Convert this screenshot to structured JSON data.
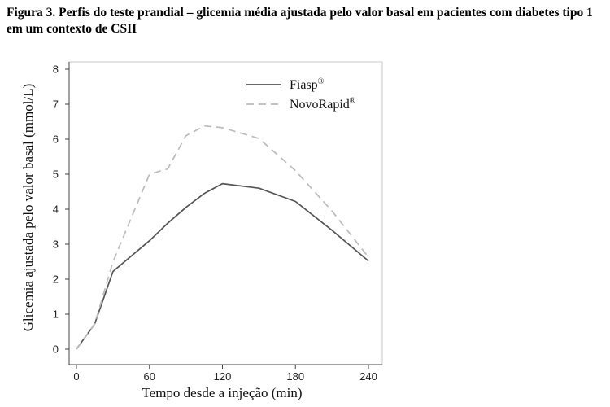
{
  "chart_data": {
    "type": "line",
    "title": "Figura 3. Perfis do teste prandial – glicemia média ajustada pelo valor basal em pacientes com diabetes tipo 1 em um contexto de CSII",
    "xlabel": "Tempo desde a injeção (min)",
    "ylabel": "Glicemia ajustada pelo valor basal (mmol/L)",
    "xlim": [
      0,
      240
    ],
    "ylim": [
      0,
      8
    ],
    "xticks": [
      0,
      60,
      120,
      180,
      240
    ],
    "yticks": [
      0,
      1,
      2,
      3,
      4,
      5,
      6,
      7,
      8
    ],
    "grid": false,
    "legend_position": "top-right",
    "series": [
      {
        "name": "Fiasp",
        "name_sup": "®",
        "color": "#555555",
        "style": "solid",
        "x": [
          0,
          15,
          30,
          60,
          75,
          90,
          105,
          120,
          150,
          180,
          210,
          240
        ],
        "y": [
          0,
          0.72,
          2.22,
          3.1,
          3.6,
          4.05,
          4.45,
          4.73,
          4.6,
          4.22,
          3.4,
          2.52
        ]
      },
      {
        "name": "NovoRapid",
        "name_sup": "®",
        "color": "#bbbbbb",
        "style": "dashed",
        "x": [
          0,
          15,
          30,
          60,
          75,
          90,
          105,
          120,
          150,
          180,
          210,
          240
        ],
        "y": [
          0,
          0.72,
          2.5,
          5.0,
          5.15,
          6.1,
          6.38,
          6.33,
          6.02,
          5.1,
          3.95,
          2.63
        ]
      }
    ]
  }
}
